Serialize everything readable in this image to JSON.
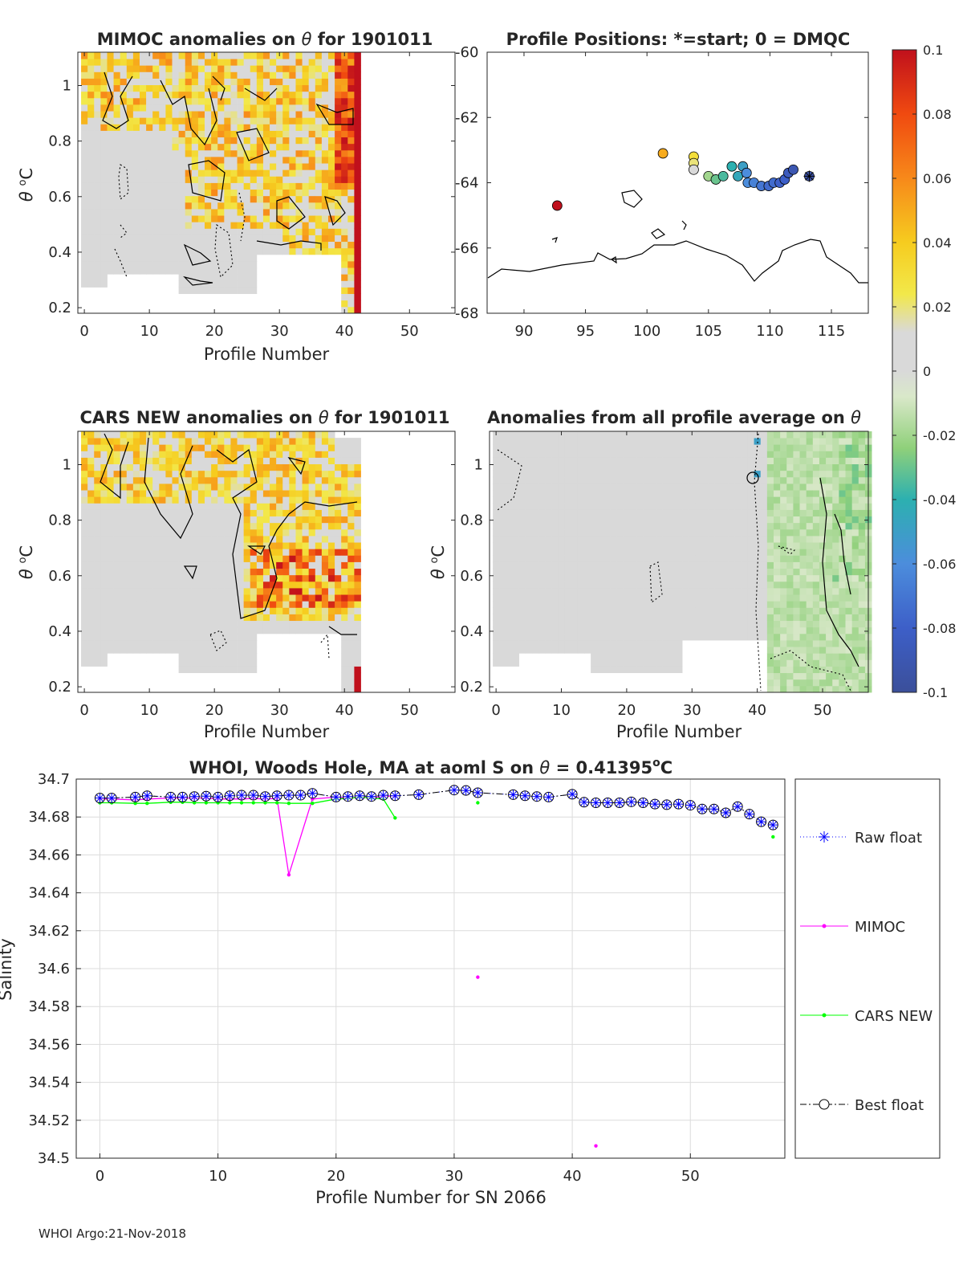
{
  "chart_data": [
    {
      "id": "mimoc",
      "type": "heatmap",
      "title": "MIMOC anomalies on θ  for 1901011",
      "title_main": "MIMOC anomalies on ",
      "title_sym": "θ",
      "title_tail": "  for 1901011",
      "xlabel": "Profile Number",
      "ylabel_sym": "θ",
      "ylabel_unit": "C",
      "ylabel_sup": "o",
      "xlim": [
        -1,
        57
      ],
      "ylim": [
        0.18,
        1.12
      ],
      "xticks": [
        "0",
        "10",
        "20",
        "30",
        "40",
        "50"
      ],
      "yticks": [
        "0.2",
        "0.4",
        "0.6",
        "0.8",
        "1"
      ],
      "data_columns": [
        0,
        42
      ],
      "color_scale": "anomaly -0.1..0.1"
    },
    {
      "id": "positions",
      "type": "scatter",
      "title": "Profile Positions: *=start; 0 = DMQC",
      "xlim": [
        87,
        118
      ],
      "ylim": [
        -68,
        -60
      ],
      "xticks": [
        "90",
        "95",
        "100",
        "105",
        "110",
        "115"
      ],
      "yticks": [
        "-60",
        "-62",
        "-64",
        "-66",
        "-68"
      ],
      "points": [
        {
          "lon": 92.7,
          "lat": -64.7,
          "c": 0.1
        },
        {
          "lon": 101.3,
          "lat": -63.1,
          "c": 0.05
        },
        {
          "lon": 103.8,
          "lat": -63.2,
          "c": 0.03
        },
        {
          "lon": 103.8,
          "lat": -63.4,
          "c": 0.02
        },
        {
          "lon": 103.8,
          "lat": -63.6,
          "c": 0.005
        },
        {
          "lon": 105.0,
          "lat": -63.8,
          "c": -0.02
        },
        {
          "lon": 105.6,
          "lat": -63.9,
          "c": -0.03
        },
        {
          "lon": 106.2,
          "lat": -63.8,
          "c": -0.035
        },
        {
          "lon": 106.9,
          "lat": -63.5,
          "c": -0.04
        },
        {
          "lon": 107.4,
          "lat": -63.8,
          "c": -0.045
        },
        {
          "lon": 107.8,
          "lat": -63.5,
          "c": -0.05
        },
        {
          "lon": 108.1,
          "lat": -63.7,
          "c": -0.06
        },
        {
          "lon": 108.2,
          "lat": -64.0,
          "c": -0.06
        },
        {
          "lon": 108.7,
          "lat": -64.0,
          "c": -0.065
        },
        {
          "lon": 109.3,
          "lat": -64.1,
          "c": -0.07
        },
        {
          "lon": 109.9,
          "lat": -64.1,
          "c": -0.075
        },
        {
          "lon": 110.3,
          "lat": -64.0,
          "c": -0.075
        },
        {
          "lon": 110.8,
          "lat": -64.0,
          "c": -0.08
        },
        {
          "lon": 111.2,
          "lat": -63.9,
          "c": -0.08
        },
        {
          "lon": 111.5,
          "lat": -63.7,
          "c": -0.085
        },
        {
          "lon": 111.9,
          "lat": -63.6,
          "c": -0.09
        },
        {
          "lon": 113.2,
          "lat": -63.8,
          "c": -0.095,
          "start": true
        }
      ]
    },
    {
      "id": "cars",
      "type": "heatmap",
      "title": "CARS NEW anomalies on θ for 1901011",
      "title_main": "CARS NEW anomalies on ",
      "title_sym": "θ",
      "title_tail": " for 1901011",
      "xlabel": "Profile Number",
      "ylabel_sym": "θ",
      "ylabel_unit": "C",
      "ylabel_sup": "o",
      "xlim": [
        -1,
        57
      ],
      "ylim": [
        0.18,
        1.12
      ],
      "xticks": [
        "0",
        "10",
        "20",
        "30",
        "40",
        "50"
      ],
      "yticks": [
        "0.2",
        "0.4",
        "0.6",
        "0.8",
        "1"
      ],
      "data_columns": [
        0,
        42
      ]
    },
    {
      "id": "allavg",
      "type": "heatmap",
      "title": "Anomalies from all profile average on θ",
      "title_main": "Anomalies from all profile average on ",
      "title_sym": "θ",
      "xlabel": "Profile Number",
      "ylabel_sym": "θ",
      "ylabel_unit": "C",
      "ylabel_sup": "o",
      "xlim": [
        -1,
        57
      ],
      "ylim": [
        0.18,
        1.12
      ],
      "xticks": [
        "0",
        "10",
        "20",
        "30",
        "40",
        "50"
      ],
      "yticks": [
        "0.2",
        "0.4",
        "0.6",
        "0.8",
        "1"
      ],
      "data_columns": [
        0,
        57
      ]
    },
    {
      "id": "colorbar",
      "type": "colorbar",
      "range": [
        -0.1,
        0.1
      ],
      "ticks": [
        "0.1",
        "0.08",
        "0.06",
        "0.04",
        "0.02",
        "0",
        "-0.02",
        "-0.04",
        "-0.06",
        "-0.08",
        "-0.1"
      ]
    },
    {
      "id": "salinity",
      "type": "line",
      "title": "WHOI, Woods Hole, MA at aoml S on θ = 0.41395°C",
      "title_main": "WHOI, Woods Hole, MA at aoml S on ",
      "title_sym": "θ",
      "title_eq": " = 0.41395",
      "title_sup": "o",
      "title_unit": "C",
      "xlabel": "Profile Number for SN 2066",
      "ylabel": "Salinity",
      "xlim": [
        -2,
        58
      ],
      "ylim": [
        34.5,
        34.7
      ],
      "xticks": [
        "0",
        "10",
        "20",
        "30",
        "40",
        "50"
      ],
      "yticks": [
        "34.7",
        "34.68",
        "34.66",
        "34.64",
        "34.62",
        "34.6",
        "34.58",
        "34.56",
        "34.54",
        "34.52",
        "34.5"
      ],
      "series": [
        {
          "name": "Raw float",
          "color": "#0000ff",
          "x": [
            0,
            1,
            3,
            4,
            6,
            7,
            8,
            9,
            10,
            11,
            12,
            13,
            14,
            15,
            16,
            17,
            18,
            20,
            21,
            22,
            23,
            24,
            25,
            27,
            30,
            31,
            32,
            35,
            36,
            37,
            38,
            40,
            41,
            42,
            43,
            44,
            45,
            46,
            47,
            48,
            49,
            50,
            51,
            52,
            53,
            54,
            55,
            56,
            57
          ],
          "y": [
            34.69,
            34.69,
            34.6905,
            34.6912,
            34.6905,
            34.6905,
            34.6908,
            34.691,
            34.6905,
            34.6912,
            34.6915,
            34.6915,
            34.6908,
            34.6912,
            34.6915,
            34.6915,
            34.6925,
            34.6905,
            34.6908,
            34.6912,
            34.6908,
            34.6915,
            34.6912,
            34.6918,
            34.6942,
            34.694,
            34.6928,
            34.6918,
            34.6912,
            34.6908,
            34.6905,
            34.692,
            34.6878,
            34.6875,
            34.6875,
            34.6875,
            34.688,
            34.6875,
            34.6868,
            34.6865,
            34.6868,
            34.6862,
            34.6842,
            34.6842,
            34.6822,
            34.6855,
            34.6815,
            34.6775,
            34.6758
          ]
        },
        {
          "name": "MIMOC",
          "color": "#ff00ff",
          "x": [
            0,
            1,
            3,
            4,
            6,
            7,
            8,
            9,
            10,
            11,
            12,
            13,
            14,
            15,
            16,
            18,
            20,
            21,
            22,
            23,
            24,
            25
          ],
          "y": [
            34.6895,
            34.6895,
            34.689,
            34.6895,
            34.69,
            34.69,
            34.69,
            34.69,
            34.6895,
            34.6895,
            34.6895,
            34.6898,
            34.6895,
            34.6898,
            34.6495,
            34.6895,
            34.6905,
            34.69,
            34.6905,
            34.69,
            34.691,
            34.691
          ],
          "extra_x": [
            32,
            42
          ],
          "extra_y": [
            34.5955,
            34.5065
          ]
        },
        {
          "name": "CARS NEW",
          "color": "#00ff00",
          "x": [
            0,
            1,
            3,
            4,
            6,
            7,
            8,
            9,
            10,
            11,
            12,
            13,
            14,
            15,
            16,
            18,
            20,
            21,
            22,
            23,
            24,
            25
          ],
          "y": [
            34.6875,
            34.6875,
            34.6872,
            34.6872,
            34.6878,
            34.6878,
            34.6875,
            34.6875,
            34.6875,
            34.6875,
            34.6875,
            34.6875,
            34.6875,
            34.6875,
            34.6872,
            34.6872,
            34.6895,
            34.6898,
            34.6905,
            34.69,
            34.6895,
            34.6795
          ],
          "extra_x": [
            32,
            57
          ],
          "extra_y": [
            34.6875,
            34.6695
          ]
        },
        {
          "name": "Best float",
          "color": "#000000",
          "x": [
            0,
            1,
            3,
            4,
            6,
            7,
            8,
            9,
            10,
            11,
            12,
            13,
            14,
            15,
            16,
            17,
            18,
            20,
            21,
            22,
            23,
            24,
            25,
            27,
            30,
            31,
            32,
            35,
            36,
            37,
            38,
            40,
            41,
            42,
            43,
            44,
            45,
            46,
            47,
            48,
            49,
            50,
            51,
            52,
            53,
            54,
            55,
            56,
            57
          ],
          "y": [
            34.69,
            34.69,
            34.6905,
            34.6912,
            34.6905,
            34.6905,
            34.6908,
            34.691,
            34.6905,
            34.6912,
            34.6915,
            34.6915,
            34.6908,
            34.6912,
            34.6915,
            34.6915,
            34.6925,
            34.6905,
            34.6908,
            34.6912,
            34.6908,
            34.6915,
            34.6912,
            34.6918,
            34.6942,
            34.694,
            34.6928,
            34.6918,
            34.6912,
            34.6908,
            34.6905,
            34.692,
            34.6878,
            34.6875,
            34.6875,
            34.6875,
            34.688,
            34.6875,
            34.6868,
            34.6865,
            34.6868,
            34.6862,
            34.6842,
            34.6842,
            34.6822,
            34.6855,
            34.6815,
            34.6775,
            34.6758
          ]
        }
      ]
    }
  ],
  "legend": [
    {
      "label": "Raw float",
      "marker": "asterisk",
      "line": "dotted",
      "color": "#0000ff"
    },
    {
      "label": "MIMOC",
      "marker": "dot",
      "line": "solid",
      "color": "#ff00ff"
    },
    {
      "label": "CARS NEW",
      "marker": "dot",
      "line": "solid",
      "color": "#00ff00"
    },
    {
      "label": "Best float",
      "marker": "circle",
      "line": "dashdot",
      "color": "#000000"
    }
  ],
  "footer": {
    "stamp": "WHOI Argo:21-Nov-2018"
  }
}
